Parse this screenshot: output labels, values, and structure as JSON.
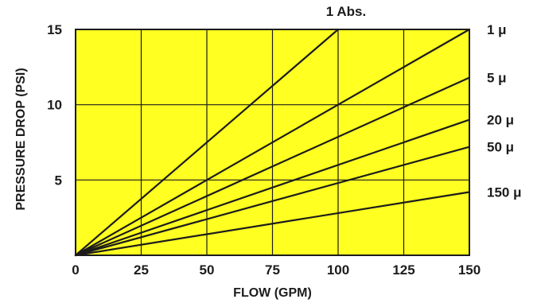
{
  "chart_data": {
    "type": "line",
    "title": "",
    "xlabel": "FLOW (GPM)",
    "ylabel": "PRESSURE DROP (PSI)",
    "xlim": [
      0,
      150
    ],
    "ylim": [
      0,
      15
    ],
    "xticks": [
      "0",
      "25",
      "50",
      "75",
      "100",
      "125",
      "150"
    ],
    "yticks": [
      "5",
      "10",
      "15"
    ],
    "grid": true,
    "background_color": "#ffff22",
    "line_color": "#1c1c1c",
    "series": [
      {
        "name": "1 Abs.",
        "x": [
          0,
          100
        ],
        "y": [
          0,
          15
        ]
      },
      {
        "name": "1 μ",
        "x": [
          0,
          150
        ],
        "y": [
          0,
          15
        ]
      },
      {
        "name": "5 μ",
        "x": [
          0,
          150
        ],
        "y": [
          0,
          11.8
        ]
      },
      {
        "name": "20 μ",
        "x": [
          0,
          150
        ],
        "y": [
          0,
          9.0
        ]
      },
      {
        "name": "50 μ",
        "x": [
          0,
          150
        ],
        "y": [
          0,
          7.2
        ]
      },
      {
        "name": "150 μ",
        "x": [
          0,
          150
        ],
        "y": [
          0,
          4.2
        ]
      }
    ]
  }
}
